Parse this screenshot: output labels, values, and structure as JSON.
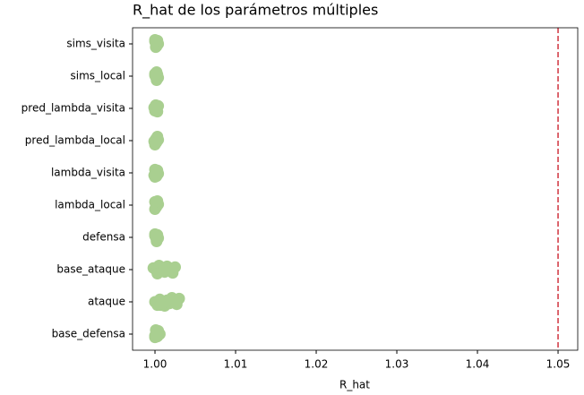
{
  "chart_data": {
    "type": "strip",
    "title": "R_hat de los parámetros múltiples",
    "x_label": "R_hat",
    "categories": [
      "sims_visita",
      "sims_local",
      "pred_lambda_visita",
      "pred_lambda_local",
      "lambda_visita",
      "lambda_local",
      "defensa",
      "base_ataque",
      "ataque",
      "base_defensa"
    ],
    "values": [
      [
        1.0,
        1.0001,
        1.0002,
        1.0003,
        1.0004,
        1.0001,
        1.0
      ],
      [
        1.0,
        1.0001,
        1.0002,
        1.0003,
        1.0004,
        1.0002,
        1.0
      ],
      [
        0.9999,
        1.0,
        1.0001,
        1.0002,
        1.0003,
        1.0004,
        1.0
      ],
      [
        0.9999,
        1.0,
        1.0001,
        1.0002,
        1.0003,
        1.0004,
        1.0001
      ],
      [
        0.9999,
        1.0,
        1.0001,
        1.0002,
        1.0003,
        1.0004,
        1.0
      ],
      [
        1.0,
        1.0001,
        1.0002,
        1.0003,
        1.0004,
        1.0001,
        1.0
      ],
      [
        1.0,
        1.0001,
        1.0002,
        1.0003,
        1.0004,
        1.0002,
        1.0
      ],
      [
        0.9998,
        1.0002,
        1.0005,
        1.0008,
        1.0012,
        1.0015,
        1.0018,
        1.0022,
        1.0025,
        1.001,
        1.0003
      ],
      [
        1.0,
        1.0003,
        1.0006,
        1.0009,
        1.0012,
        1.0015,
        1.0018,
        1.0021,
        1.0024,
        1.0027,
        1.003,
        1.0013,
        1.0007
      ],
      [
        1.0,
        1.0001,
        1.0002,
        1.0003,
        1.0004,
        1.0006,
        1.0
      ]
    ],
    "color": "#a9cf90",
    "reference_line": 1.05,
    "reference_color": "#d0343f",
    "xlim": [
      0.99722,
      1.05244
    ],
    "xticks": [
      {
        "value": 1.0,
        "label": "1.00"
      },
      {
        "value": 1.01,
        "label": "1.01"
      },
      {
        "value": 1.02,
        "label": "1.02"
      },
      {
        "value": 1.03,
        "label": "1.03"
      },
      {
        "value": 1.04,
        "label": "1.04"
      },
      {
        "value": 1.05,
        "label": "1.05"
      }
    ]
  }
}
